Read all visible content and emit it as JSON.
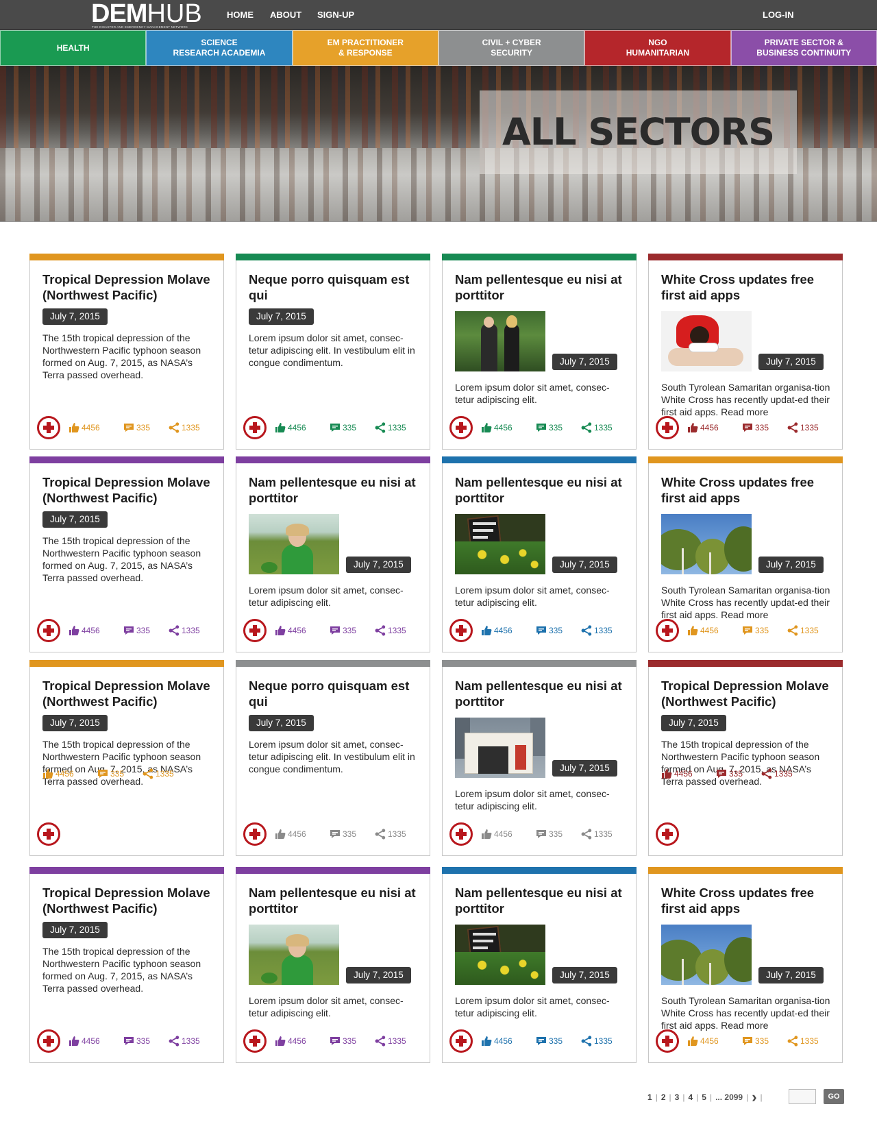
{
  "brand": {
    "dem": "DEM",
    "hub": "HUB",
    "tagline": "THE DISASTER AND EMERGENCY MANAGEMENT NETWORK"
  },
  "nav": {
    "home": "HOME",
    "about": "ABOUT",
    "signup": "SIGN-UP",
    "login": "LOG-IN"
  },
  "sectors": [
    {
      "label": "HEALTH",
      "color": "#1a9a52"
    },
    {
      "label": "SCIENCE\nRESEARCH ACADEMIA",
      "color": "#2e86bf"
    },
    {
      "label": "EM PRACTITIONER\n& RESPONSE",
      "color": "#e6a12a"
    },
    {
      "label": "CIVIL + CYBER\nSECURITY",
      "color": "#8d8f90"
    },
    {
      "label": "NGO\nHUMANITARIAN",
      "color": "#b5262b"
    },
    {
      "label": "PRIVATE SECTOR &\nBUSINESS CONTINUITY",
      "color": "#8b4ea8"
    }
  ],
  "hero": {
    "title": "ALL SECTORS"
  },
  "cards": [
    {
      "title": "Tropical Depression Molave (Northwest Pacific)",
      "date": "July 7, 2015",
      "text": "The 15th tropical depression of the Northwestern Pacific typhoon season formed on Aug. 7, 2015, as NASA’s Terra passed overhead.",
      "color": "#e0961f",
      "likes": "4456",
      "comments": "335",
      "shares": "1335"
    },
    {
      "title": "Neque porro quisquam est qui",
      "date": "July 7, 2015",
      "text": "Lorem ipsum dolor sit amet, consec-tetur adipiscing elit. In vestibulum elit in congue condimentum.",
      "color": "#178a53",
      "likes": "4456",
      "comments": "335",
      "shares": "1335"
    },
    {
      "title": "Nam pellentesque eu nisi at porttitor",
      "date": "July 7, 2015",
      "text": "Lorem ipsum dolor sit amet, consec-tetur adipiscing elit.",
      "color": "#178a53",
      "image": "handshake",
      "likes": "4456",
      "comments": "335",
      "shares": "1335"
    },
    {
      "title": "White Cross updates free first aid apps",
      "date": "July 7, 2015",
      "text": "South Tyrolean Samaritan organisa-tion White Cross has recently updat-ed their first aid apps. Read more",
      "color": "#9b2b2d",
      "image": "cpr",
      "likes": "4456",
      "comments": "335",
      "shares": "1335"
    },
    {
      "title": "Tropical Depression Molave (Northwest Pacific)",
      "date": "July 7, 2015",
      "text": "The 15th tropical depression of the Northwestern Pacific typhoon season formed on Aug. 7, 2015, as NASA’s Terra passed overhead.",
      "color": "#7e3fa0",
      "likes": "4456",
      "comments": "335",
      "shares": "1335"
    },
    {
      "title": "Nam pellentesque eu nisi at porttitor",
      "date": "July 7, 2015",
      "text": "Lorem ipsum dolor sit amet, consec-tetur adipiscing elit.",
      "color": "#7e3fa0",
      "image": "woman",
      "likes": "4456",
      "comments": "335",
      "shares": "1335"
    },
    {
      "title": "Nam pellentesque eu nisi at porttitor",
      "date": "July 7, 2015",
      "text": "Lorem ipsum dolor sit amet, consec-tetur adipiscing elit.",
      "color": "#1e72ad",
      "image": "market",
      "likes": "4456",
      "comments": "335",
      "shares": "1335"
    },
    {
      "title": "White Cross updates free first aid apps",
      "date": "July 7, 2015",
      "text": "South Tyrolean Samaritan organisa-tion White Cross has recently updat-ed their first aid apps. Read more",
      "color": "#e0961f",
      "image": "trees",
      "likes": "4456",
      "comments": "335",
      "shares": "1335"
    },
    {
      "title": "Tropical Depression Molave (Northwest Pacific)",
      "date": "July 7, 2015",
      "text": "The 15th tropical depression of the Northwestern Pacific typhoon season formed on Aug. 7, 2015, as NASA’s Terra passed overhead.",
      "color": "#e0961f",
      "likes": "4456",
      "comments": "335",
      "shares": "1335"
    },
    {
      "title": "Neque porro quisquam est qui",
      "date": "July 7, 2015",
      "text": "Lorem ipsum dolor sit amet, consec-tetur adipiscing elit. In vestibulum elit in congue condimentum.",
      "color": "#8d8f90",
      "likes": "4456",
      "comments": "335",
      "shares": "1335"
    },
    {
      "title": "Nam pellentesque eu nisi at porttitor",
      "date": "July 7, 2015",
      "text": "Lorem ipsum dolor sit amet, consec-tetur adipiscing elit.",
      "color": "#8d8f90",
      "image": "tent",
      "likes": "4456",
      "comments": "335",
      "shares": "1335"
    },
    {
      "title": "Tropical Depression Molave (Northwest Pacific)",
      "date": "July 7, 2015",
      "text": "The 15th tropical depression of the Northwestern Pacific typhoon season formed on Aug. 7, 2015, as NASA’s Terra passed overhead.",
      "color": "#9b2b2d",
      "likes": "4456",
      "comments": "335",
      "shares": "1335"
    },
    {
      "title": "Tropical Depression Molave (Northwest Pacific)",
      "date": "July 7, 2015",
      "text": "The 15th tropical depression of the Northwestern Pacific typhoon season formed on Aug. 7, 2015, as NASA’s Terra passed overhead.",
      "color": "#7e3fa0",
      "likes": "4456",
      "comments": "335",
      "shares": "1335"
    },
    {
      "title": "Nam pellentesque eu nisi at porttitor",
      "date": "July 7, 2015",
      "text": "Lorem ipsum dolor sit amet, consec-tetur adipiscing elit.",
      "color": "#7e3fa0",
      "image": "woman",
      "likes": "4456",
      "comments": "335",
      "shares": "1335"
    },
    {
      "title": "Nam pellentesque eu nisi at porttitor",
      "date": "July 7, 2015",
      "text": "Lorem ipsum dolor sit amet, consec-tetur adipiscing elit.",
      "color": "#1e72ad",
      "image": "market",
      "likes": "4456",
      "comments": "335",
      "shares": "1335"
    },
    {
      "title": "White Cross updates free first aid apps",
      "date": "July 7, 2015",
      "text": "South Tyrolean Samaritan organisa-tion White Cross has recently updat-ed their first aid apps. Read more",
      "color": "#e0961f",
      "image": "trees",
      "likes": "4456",
      "comments": "335",
      "shares": "1335"
    }
  ],
  "pagination": {
    "pages": [
      "1",
      "2",
      "3",
      "4",
      "5"
    ],
    "ellipsis": "... 2099",
    "next": "›",
    "go": "GO"
  },
  "icons": {
    "add": "plus-circle-icon",
    "like": "thumbs-up-icon",
    "comment": "comment-icon",
    "share": "share-icon"
  }
}
